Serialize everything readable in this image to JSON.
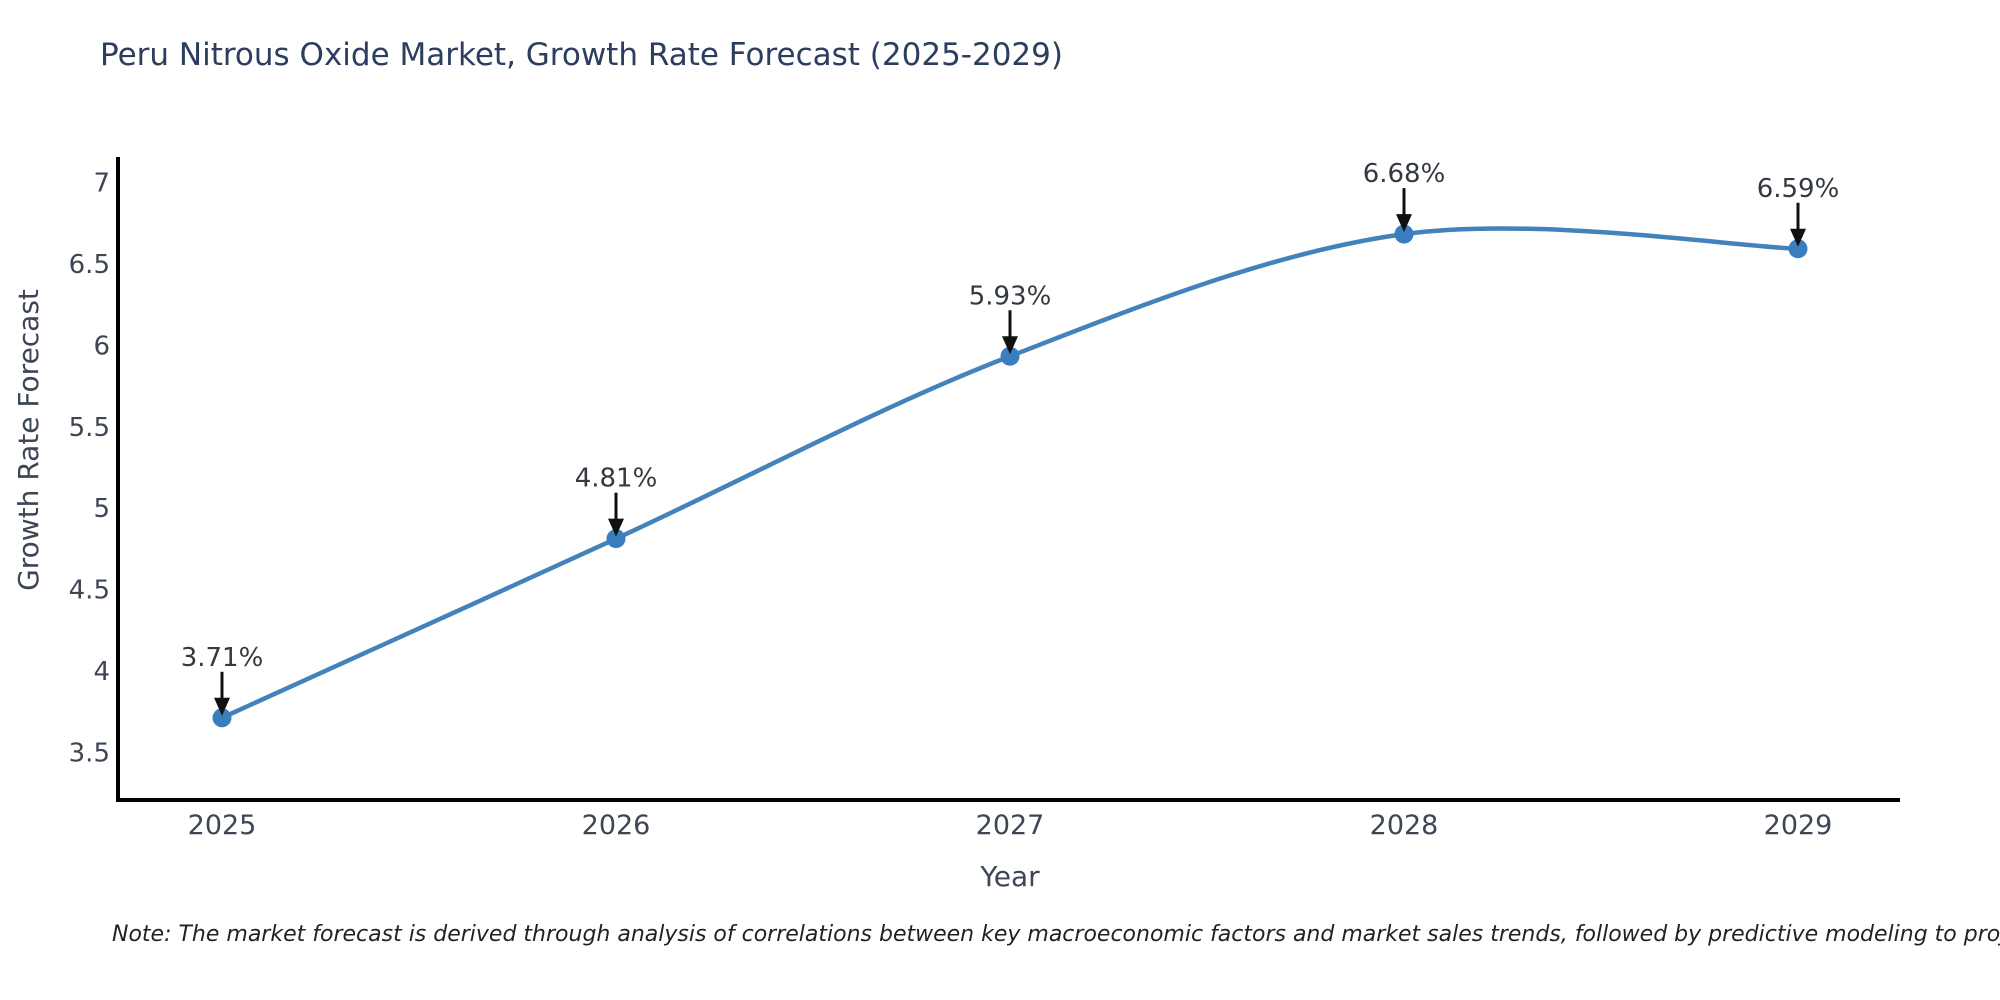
{
  "title": "Peru Nitrous Oxide Market, Growth Rate Forecast (2025-2029)",
  "note": "Note: The market forecast is derived through analysis of correlations between key macroeconomic factors and market sales trends, followed by predictive modeling to project future sales",
  "chart_data": {
    "type": "line",
    "title": "Peru Nitrous Oxide Market, Growth Rate Forecast (2025-2029)",
    "xlabel": "Year",
    "ylabel": "Growth Rate Forecast",
    "categories": [
      "2025",
      "2026",
      "2027",
      "2028",
      "2029"
    ],
    "values": [
      3.71,
      4.81,
      5.93,
      6.68,
      6.59
    ],
    "point_labels": [
      "3.71%",
      "4.81%",
      "5.93%",
      "6.68%",
      "6.59%"
    ],
    "yticks": [
      3.5,
      4,
      4.5,
      5,
      5.5,
      6,
      6.5,
      7
    ],
    "ylim": [
      3.2,
      7.17
    ],
    "grid": false,
    "legend": false,
    "smooth": true,
    "annotation_arrows": true,
    "colors": {
      "line": "#4382bb",
      "marker": "#3a7ebf",
      "axis": "#000000",
      "tick_text": "#3d4655",
      "title_text": "#2c3e5e",
      "annotation_text": "#333940",
      "arrow": "#111111"
    }
  }
}
